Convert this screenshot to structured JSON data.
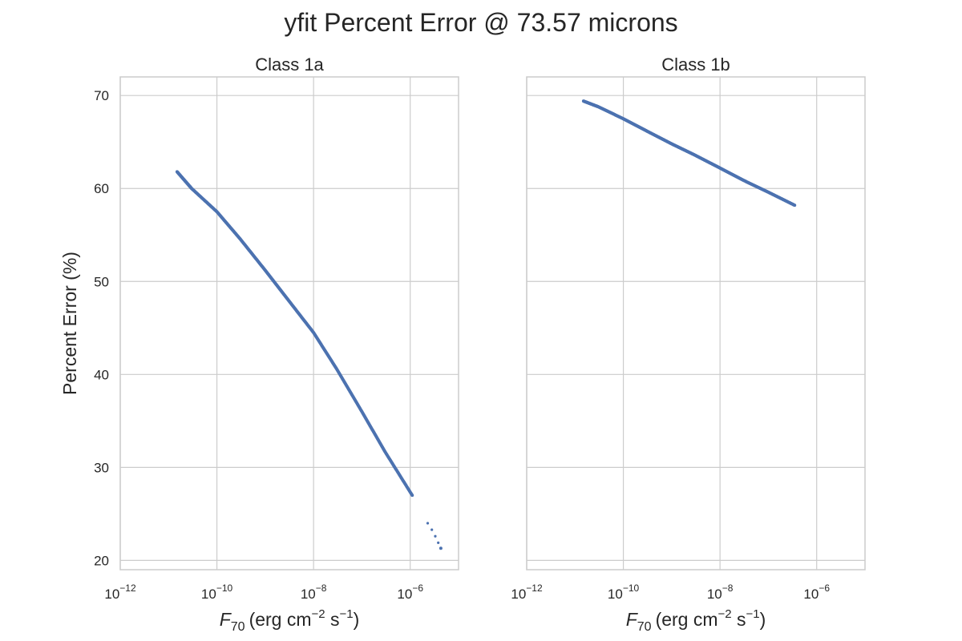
{
  "figure": {
    "title": "yfit Percent Error @ 73.57 microns"
  },
  "chart_data": [
    {
      "type": "scatter",
      "title": "Class 1a",
      "xlabel_base": "F",
      "xlabel_sub": "70",
      "xlabel_units": "(erg cm",
      "xlabel_exp1": "−2",
      "xlabel_mid": " s",
      "xlabel_exp2": "−1",
      "xlabel_end": ")",
      "ylabel": "Percent Error (%)",
      "xscale": "log",
      "xlim": [
        1e-12,
        1e-05
      ],
      "ylim": [
        19,
        72
      ],
      "x_ticks": [
        1e-12,
        1e-10,
        1e-08,
        1e-06
      ],
      "x_tick_exponents": [
        "−12",
        "−10",
        "−8",
        "−6"
      ],
      "y_ticks": [
        20,
        30,
        40,
        50,
        60,
        70
      ],
      "grid": true,
      "color": "#4c72b0",
      "series": [
        {
          "segments": [
            {
              "x": [
                1.5e-11,
                3e-11,
                1e-10,
                3e-10,
                1e-09,
                3e-09,
                1e-08,
                3e-08,
                1e-07,
                3e-07,
                1.1e-06
              ],
              "y": [
                61.8,
                60.0,
                57.5,
                54.6,
                51.2,
                48.0,
                44.5,
                40.6,
                36.0,
                31.7,
                27.0
              ]
            },
            {
              "x": [
                2.3e-06,
                2.8e-06,
                3.3e-06,
                3.8e-06,
                4.3e-06
              ],
              "y": [
                24.0,
                23.3,
                22.6,
                21.9,
                21.3
              ]
            }
          ]
        }
      ]
    },
    {
      "type": "scatter",
      "title": "Class 1b",
      "xlabel_base": "F",
      "xlabel_sub": "70",
      "xlabel_units": "(erg cm",
      "xlabel_exp1": "−2",
      "xlabel_mid": " s",
      "xlabel_exp2": "−1",
      "xlabel_end": ")",
      "ylabel": "",
      "xscale": "log",
      "xlim": [
        1e-12,
        1e-05
      ],
      "ylim": [
        19,
        72
      ],
      "x_ticks": [
        1e-12,
        1e-10,
        1e-08,
        1e-06
      ],
      "x_tick_exponents": [
        "−12",
        "−10",
        "−8",
        "−6"
      ],
      "y_ticks": [
        20,
        30,
        40,
        50,
        60,
        70
      ],
      "grid": true,
      "sharey": true,
      "color": "#4c72b0",
      "series": [
        {
          "segments": [
            {
              "x": [
                1.5e-11,
                3e-11,
                1e-10,
                3e-10,
                1e-09,
                3e-09,
                1e-08,
                3e-08,
                1e-07,
                3.5e-07
              ],
              "y": [
                69.4,
                68.8,
                67.5,
                66.2,
                64.8,
                63.6,
                62.2,
                60.9,
                59.6,
                58.2
              ]
            }
          ]
        }
      ]
    }
  ]
}
